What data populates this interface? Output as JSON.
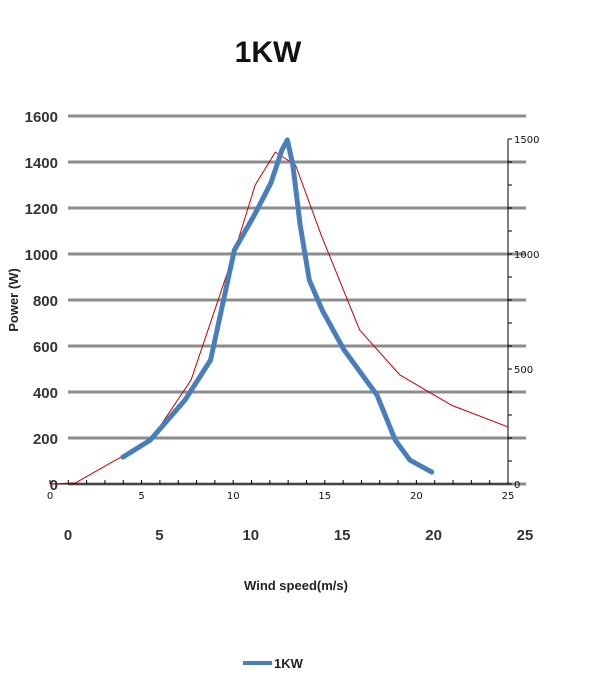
{
  "chart_data": {
    "type": "line",
    "title": "1KW",
    "xlabel": "Wind speed(m/s)",
    "ylabel": "Power (W)",
    "xlim": [
      0,
      25
    ],
    "ylim": [
      0,
      1600
    ],
    "x_ticks": [
      "0",
      "5",
      "10",
      "15",
      "20",
      "25"
    ],
    "y_ticks": [
      "0",
      "200",
      "400",
      "600",
      "800",
      "1000",
      "1200",
      "1400",
      "1600"
    ],
    "grid": true,
    "legend": {
      "placement": "bottom",
      "entries": [
        "1KW"
      ]
    },
    "series": [
      {
        "name": "1KW",
        "color": "#4a7ebb",
        "x": [
          3.0,
          4.5,
          6.4,
          7.8,
          9.1,
          10.2,
          11.1,
          11.7,
          12.0,
          12.3,
          12.7,
          13.2,
          13.9,
          15.1,
          16.9,
          17.9,
          18.7,
          19.9
        ],
        "y": [
          117,
          191,
          365,
          539,
          1017,
          1170,
          1309,
          1452,
          1496,
          1387,
          1126,
          887,
          757,
          583,
          387,
          191,
          104,
          52
        ]
      }
    ],
    "overlay": {
      "color": "#c00000",
      "xlim": [
        0,
        25
      ],
      "ylim": [
        0,
        1500
      ],
      "x_ticks": [
        "0",
        "5",
        "10",
        "15",
        "20",
        "25"
      ],
      "y_ticks": [
        "0",
        "500",
        "1000",
        "1500"
      ],
      "x": [
        0,
        1.4,
        5.5,
        7.7,
        10.1,
        11.2,
        12.3,
        13.4,
        14.8,
        16.9,
        19.1,
        21.9,
        25
      ],
      "y": [
        0,
        5,
        191,
        452,
        1017,
        1300,
        1443,
        1387,
        1083,
        670,
        474,
        343,
        248
      ]
    }
  }
}
